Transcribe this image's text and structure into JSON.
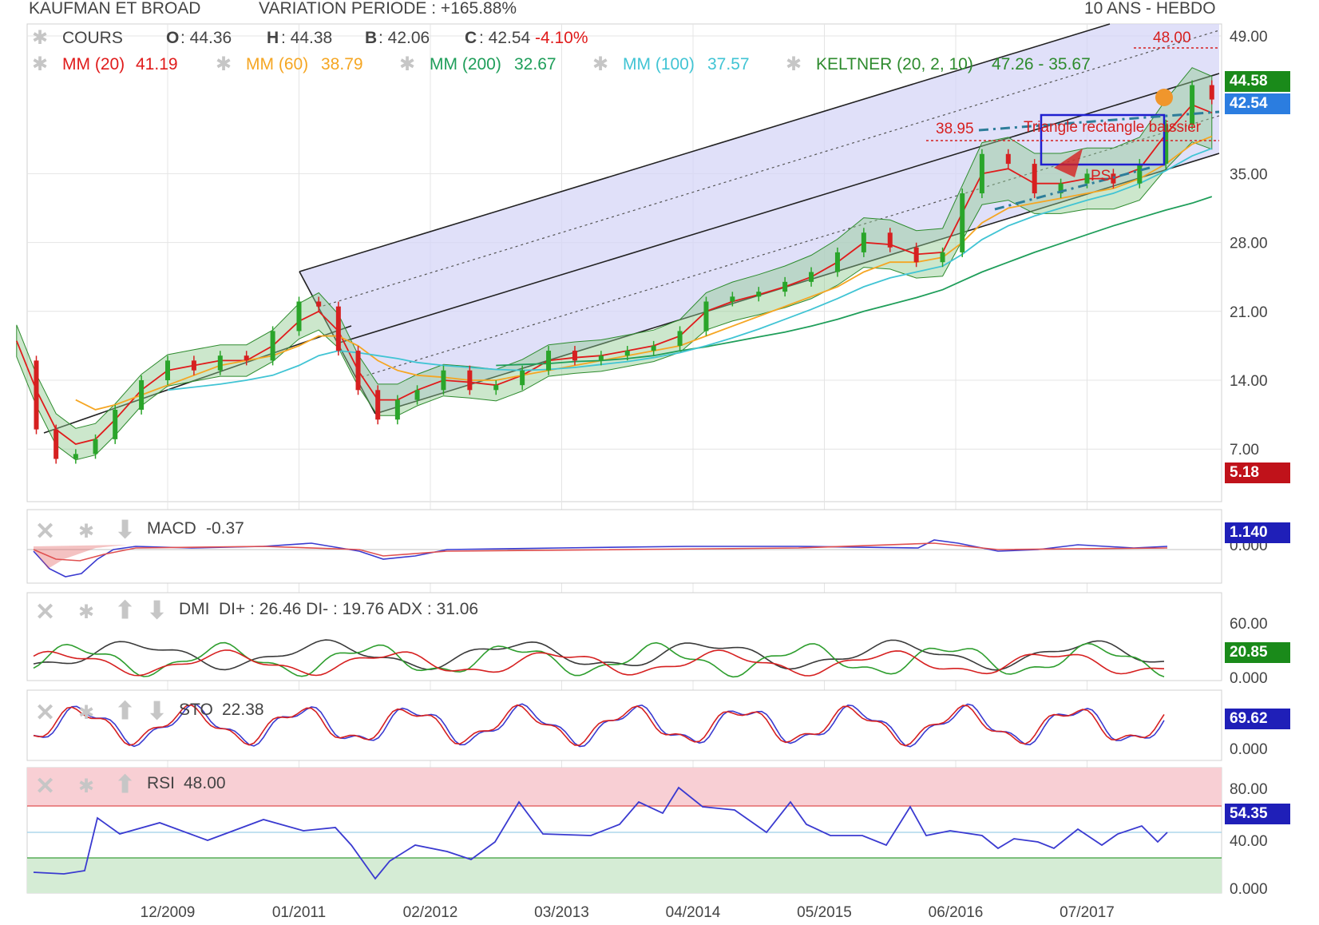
{
  "header": {
    "instrument": "KAUFMAN ET BROAD",
    "variation": "VARIATION PERIODE : +165.88%",
    "period": "10 ANS - HEBDO"
  },
  "main_legend": {
    "cours_label": "COURS",
    "open_label": "O",
    "open_value": ": 44.36",
    "high_label": "H",
    "high_value": ": 44.38",
    "low_label": "B",
    "low_value": ": 42.06",
    "close_label": "C",
    "close_value": ": 42.54",
    "change": "-4.10%",
    "mm20": "MM (20)",
    "mm20_value": "41.19",
    "mm60": "MM (60)",
    "mm60_value": "38.79",
    "mm200": "MM (200)",
    "mm200_value": "32.67",
    "mm100": "MM (100)",
    "mm100_value": "37.57",
    "keltner": "KELTNER (20, 2, 10)",
    "keltner_value": "47.26 - 35.67"
  },
  "annotations": {
    "resistance": "48.00",
    "level": "38.95",
    "pattern": "Triangle rectangle baissier",
    "ps": "PS"
  },
  "price_tags": {
    "tag1": "44.58",
    "tag2": "42.54",
    "tag3": "5.18"
  },
  "panels": {
    "macd": {
      "label": "MACD",
      "value": "-0.37",
      "tag": "1.140",
      "axis_bottom": "0.000"
    },
    "dmi": {
      "label": "DMI",
      "value": "DI+ : 26.46 DI- : 19.76 ADX : 31.06",
      "tag": "20.85",
      "ticks": [
        "60.00",
        "0.000"
      ]
    },
    "sto": {
      "label": "STO",
      "value": "22.38",
      "tag": "69.62",
      "ticks": [
        "0.000"
      ]
    },
    "rsi": {
      "label": "RSI",
      "value": "48.00",
      "tag": "54.35",
      "ticks": [
        "80.00",
        "40.00",
        "0.000"
      ]
    }
  },
  "colors": {
    "mm20": "#e01b1b",
    "mm60": "#f5a623",
    "mm200": "#1f9e5a",
    "mm100": "#41c4d4",
    "keltner": "#2e8b2e",
    "price_up": "#2aa52a",
    "price_down": "#d62020",
    "channel_fill": "#d6d6f7",
    "tag_green": "#1a8a1a",
    "tag_blue": "#2b7de0",
    "tag_red": "#c0121a",
    "tag_navy": "#1f1fb8"
  },
  "chart_data": {
    "type": "line",
    "title": "KAUFMAN ET BROAD",
    "x_ticks": [
      "12/2009",
      "01/2011",
      "02/2012",
      "03/2013",
      "04/2014",
      "05/2015",
      "06/2016",
      "07/2017"
    ],
    "y_ticks": [
      "49.00",
      "35.00",
      "28.00",
      "21.00",
      "14.00",
      "7.00"
    ],
    "ylim": [
      0,
      49
    ],
    "grid": true,
    "x": [
      2008.85,
      2009.0,
      2009.15,
      2009.3,
      2009.45,
      2009.6,
      2009.8,
      2010.0,
      2010.2,
      2010.4,
      2010.6,
      2010.8,
      2011.0,
      2011.15,
      2011.3,
      2011.45,
      2011.6,
      2011.75,
      2011.9,
      2012.1,
      2012.3,
      2012.5,
      2012.7,
      2012.9,
      2013.1,
      2013.3,
      2013.5,
      2013.7,
      2013.9,
      2014.1,
      2014.3,
      2014.5,
      2014.7,
      2014.9,
      2015.1,
      2015.3,
      2015.5,
      2015.7,
      2015.9,
      2016.05,
      2016.2,
      2016.4,
      2016.6,
      2016.8,
      2017.0,
      2017.2,
      2017.4,
      2017.6,
      2017.8,
      2017.95
    ],
    "series": [
      {
        "name": "COURS",
        "values": [
          16,
          9,
          6,
          6.5,
          8,
          11,
          14,
          16,
          15,
          16.5,
          16,
          19,
          22,
          21.5,
          17,
          13,
          10,
          12,
          13,
          15,
          13,
          13.5,
          15,
          17,
          16,
          16.5,
          17,
          17.5,
          19,
          22,
          22.5,
          23,
          24,
          25,
          27,
          29,
          27.5,
          26,
          27,
          33,
          37,
          36,
          33,
          34,
          35,
          34,
          36,
          40,
          44,
          42.54
        ]
      },
      {
        "name": "MM (20)",
        "values": [
          18,
          13,
          9,
          7.5,
          8,
          10,
          13,
          15,
          15.5,
          16,
          16,
          17.5,
          20,
          21,
          19,
          15,
          12,
          12,
          13,
          14,
          13.8,
          13.5,
          14.5,
          16,
          16.3,
          16.5,
          17,
          17.5,
          18.5,
          21,
          22,
          22.7,
          23.5,
          24.5,
          26,
          28,
          27.8,
          26.8,
          27,
          31,
          35,
          35.5,
          34,
          34,
          34.5,
          34.5,
          35.5,
          39,
          42,
          41.19
        ]
      },
      {
        "name": "MM (60)",
        "values": [
          null,
          null,
          null,
          12,
          11,
          11.5,
          12.5,
          13.5,
          14.5,
          15.5,
          16,
          16.5,
          17.5,
          18.5,
          18.5,
          17.5,
          16,
          15,
          14.5,
          14.3,
          14,
          14,
          14.5,
          15,
          15.5,
          16,
          16.5,
          17,
          17.5,
          18.5,
          19.5,
          20.5,
          21.5,
          22.5,
          23.5,
          25,
          26,
          26,
          26.5,
          28,
          30,
          31.5,
          32,
          32.5,
          33,
          33.5,
          34.5,
          36,
          38,
          38.79
        ]
      },
      {
        "name": "MM (200)",
        "values": [
          null,
          null,
          null,
          null,
          null,
          null,
          null,
          null,
          null,
          null,
          null,
          null,
          null,
          null,
          null,
          null,
          null,
          null,
          null,
          null,
          null,
          15.5,
          15.6,
          15.7,
          15.9,
          16,
          16.2,
          16.5,
          17,
          17.4,
          17.9,
          18.4,
          18.9,
          19.5,
          20.2,
          21,
          21.7,
          22.4,
          23.2,
          24.1,
          25,
          26,
          27,
          27.9,
          28.8,
          29.7,
          30.5,
          31.3,
          32,
          32.67
        ]
      },
      {
        "name": "MM (100)",
        "values": [
          null,
          null,
          null,
          null,
          null,
          null,
          null,
          13,
          13.3,
          13.6,
          14,
          14.5,
          15.5,
          16.5,
          17,
          16.8,
          16.5,
          16.2,
          15.8,
          15.5,
          15.3,
          15.1,
          15,
          15.1,
          15.3,
          15.6,
          15.9,
          16.3,
          16.8,
          17.5,
          18.3,
          19.2,
          20.2,
          21.2,
          22.3,
          23.5,
          24.4,
          25,
          25.6,
          26.8,
          28.3,
          29.7,
          30.7,
          31.5,
          32.3,
          33,
          34,
          35.3,
          36.8,
          37.57
        ]
      }
    ],
    "indicators": {
      "macd": {
        "label": "MACD",
        "value": -0.37
      },
      "dmi": {
        "di_plus": 26.46,
        "di_minus": 19.76,
        "adx": 31.06
      },
      "sto": {
        "value": 22.38
      },
      "rsi": {
        "value": 48.0,
        "levels": [
          70,
          30
        ]
      }
    }
  }
}
